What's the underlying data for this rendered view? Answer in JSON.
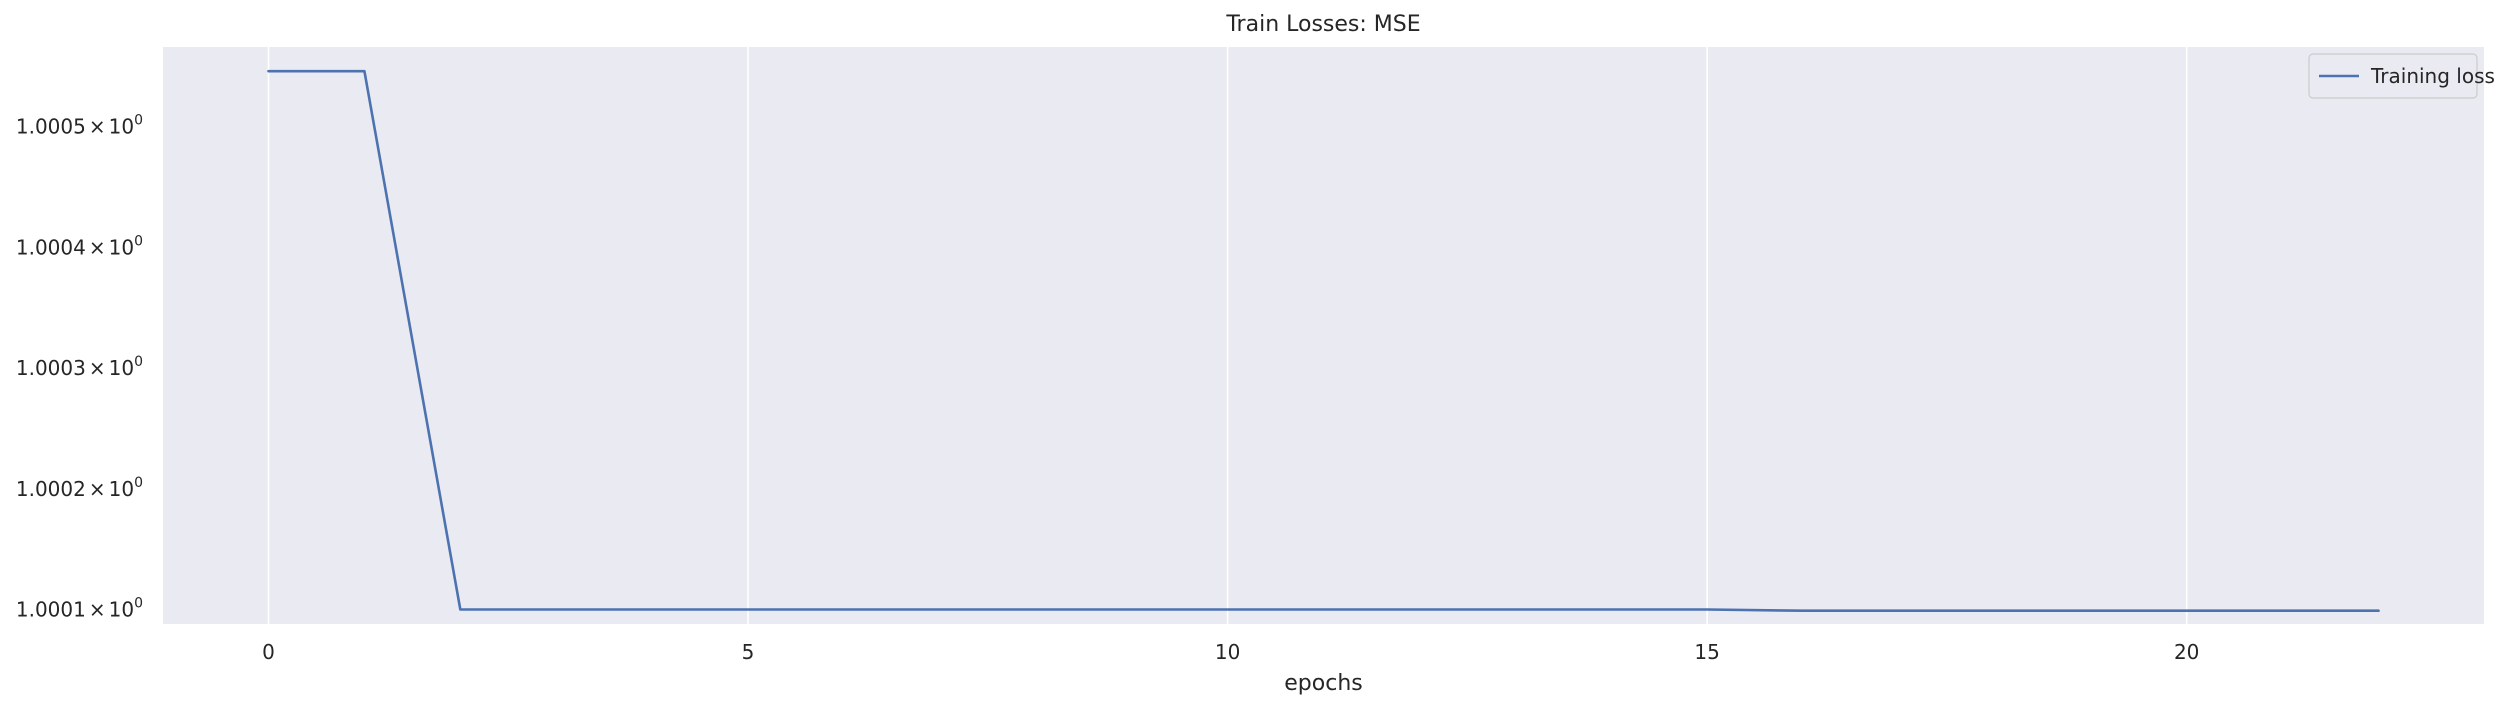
{
  "colors": {
    "plot_background": "#eaeaf2",
    "grid": "#ffffff",
    "series_line": "#4c72b0",
    "text": "#262626",
    "legend_border": "#cccccc"
  },
  "chart_data": {
    "type": "line",
    "title": "Train Losses:  MSE",
    "xlabel": "epochs",
    "ylabel": "",
    "xlim": [
      -1.1,
      23.1
    ],
    "ylim": [
      1.000088,
      1.000566
    ],
    "yscale": "log",
    "grid": true,
    "legend_position": "top-right",
    "xticks": [
      {
        "value": 0,
        "label": "0"
      },
      {
        "value": 5,
        "label": "5"
      },
      {
        "value": 10,
        "label": "10"
      },
      {
        "value": 15,
        "label": "15"
      },
      {
        "value": 20,
        "label": "20"
      }
    ],
    "yticks": [
      {
        "value": 1.0001,
        "mantissa": "1.0001",
        "times": "×",
        "base": "10",
        "exponent": "0"
      },
      {
        "value": 1.0002,
        "mantissa": "1.0002",
        "times": "×",
        "base": "10",
        "exponent": "0"
      },
      {
        "value": 1.0003,
        "mantissa": "1.0003",
        "times": "×",
        "base": "10",
        "exponent": "0"
      },
      {
        "value": 1.0004,
        "mantissa": "1.0004",
        "times": "×",
        "base": "10",
        "exponent": "0"
      },
      {
        "value": 1.0005,
        "mantissa": "1.0005",
        "times": "×",
        "base": "10",
        "exponent": "0"
      }
    ],
    "series": [
      {
        "name": "Training loss",
        "x": [
          0,
          1,
          2,
          3,
          4,
          5,
          6,
          7,
          8,
          9,
          10,
          11,
          12,
          13,
          14,
          15,
          16,
          17,
          18,
          19,
          20,
          21,
          22
        ],
        "y": [
          1.000546,
          1.000546,
          1.0001,
          1.0001,
          1.0001,
          1.0001,
          1.0001,
          1.0001,
          1.0001,
          1.0001,
          1.0001,
          1.0001,
          1.0001,
          1.0001,
          1.0001,
          1.0001,
          1.000099,
          1.000099,
          1.000099,
          1.000099,
          1.000099,
          1.000099,
          1.000099
        ]
      }
    ]
  }
}
